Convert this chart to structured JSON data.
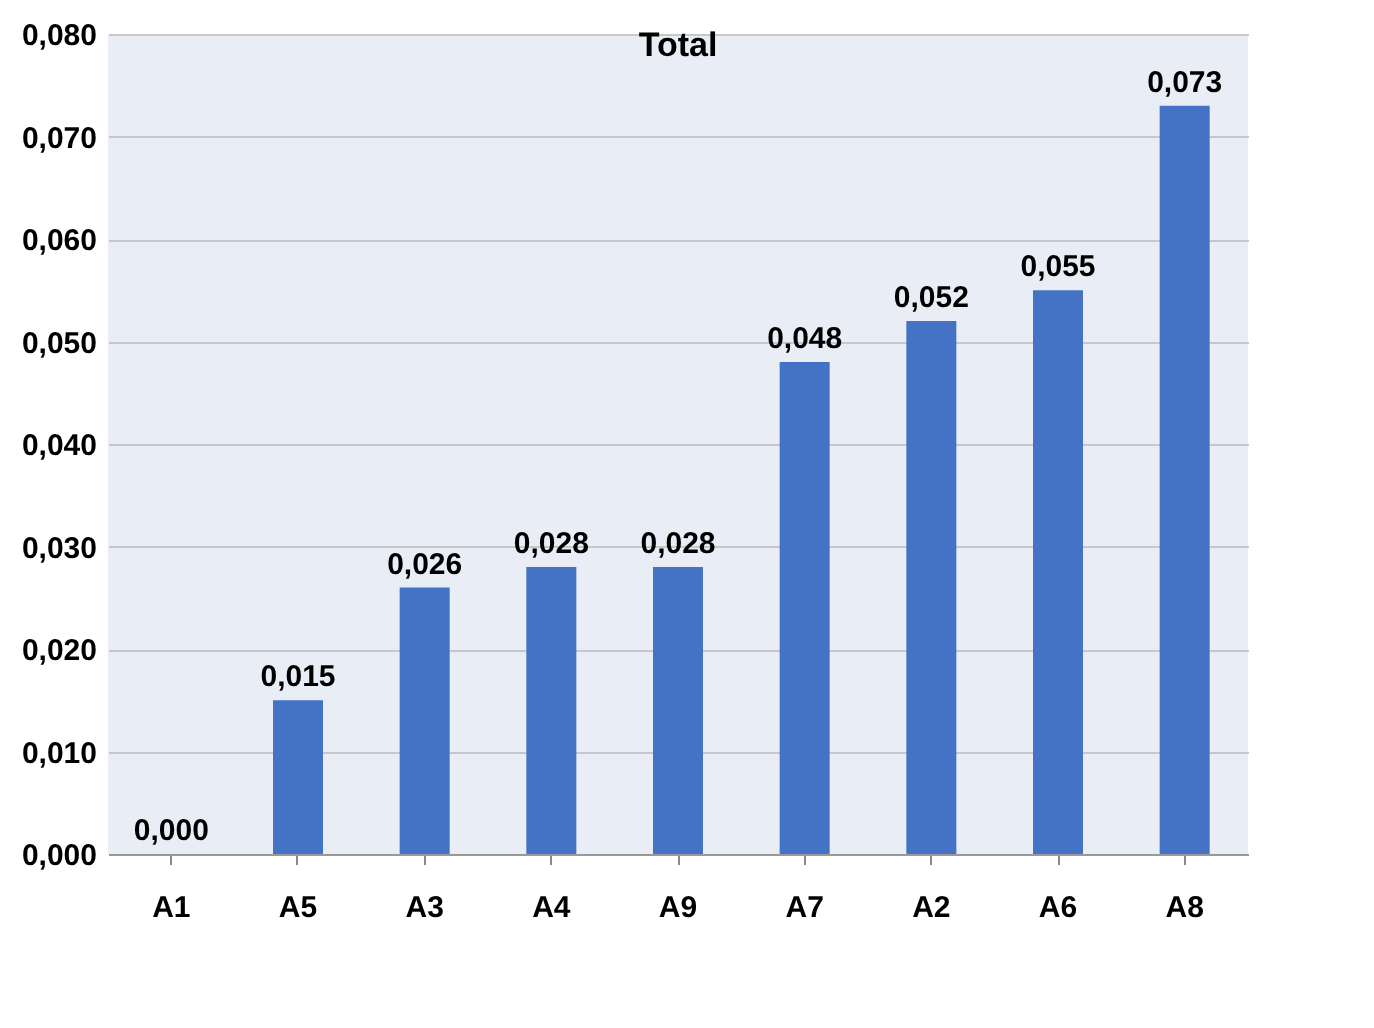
{
  "chart_data": {
    "type": "bar",
    "title": "Total",
    "categories": [
      "A1",
      "A5",
      "A3",
      "A4",
      "A9",
      "A7",
      "A2",
      "A6",
      "A8"
    ],
    "values": [
      0.0,
      0.015,
      0.026,
      0.028,
      0.028,
      0.048,
      0.052,
      0.055,
      0.073
    ],
    "value_labels": [
      "0,000",
      "0,015",
      "0,026",
      "0,028",
      "0,028",
      "0,048",
      "0,052",
      "0,055",
      "0,073"
    ],
    "color": "#4472c4",
    "ylim": [
      0,
      0.08
    ],
    "yticks": [
      {
        "value": 0,
        "label": "0,000"
      },
      {
        "value": 0.01,
        "label": "0,010"
      },
      {
        "value": 0.02,
        "label": "0,020"
      },
      {
        "value": 0.03,
        "label": "0,030"
      },
      {
        "value": 0.04,
        "label": "0,040"
      },
      {
        "value": 0.05,
        "label": "0,050"
      },
      {
        "value": 0.06,
        "label": "0,060"
      },
      {
        "value": 0.07,
        "label": "0,070"
      },
      {
        "value": 0.08,
        "label": "0,080"
      }
    ],
    "grid": "y"
  }
}
